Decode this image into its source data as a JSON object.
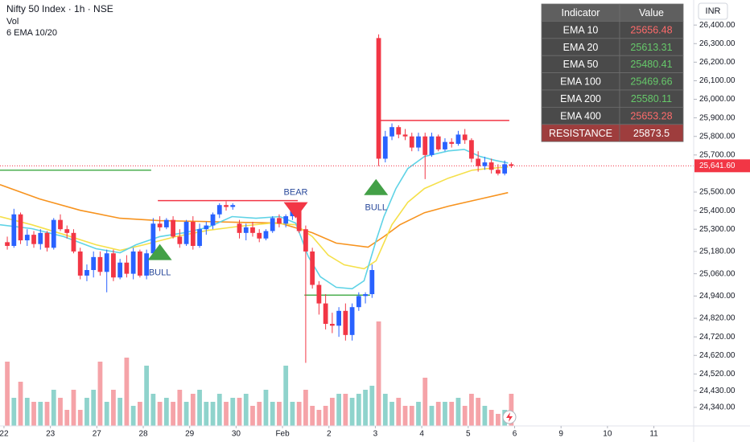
{
  "chart_data": {
    "type": "candlestick",
    "title": "Nifty 50 Index · 1h · NSE",
    "legend_items": [
      "Vol",
      "6 EMA 10/20"
    ],
    "currency": "INR",
    "xlim": [
      -0.6,
      104
    ],
    "xticks": [
      {
        "value": 0,
        "label": "22"
      },
      {
        "value": 7,
        "label": "23"
      },
      {
        "value": 14,
        "label": "27"
      },
      {
        "value": 21,
        "label": "28"
      },
      {
        "value": 28,
        "label": "29"
      },
      {
        "value": 35,
        "label": "30"
      },
      {
        "value": 42,
        "label": "Feb"
      },
      {
        "value": 49,
        "label": "2"
      },
      {
        "value": 56,
        "label": "3"
      },
      {
        "value": 63,
        "label": "4"
      },
      {
        "value": 70,
        "label": "5"
      },
      {
        "value": 77,
        "label": "6"
      },
      {
        "value": 84,
        "label": "9"
      },
      {
        "value": 91,
        "label": "10"
      },
      {
        "value": 98,
        "label": "11"
      }
    ],
    "ylim": [
      24240,
      26535
    ],
    "yticks": [
      {
        "value": 26400,
        "label": "26,400.00"
      },
      {
        "value": 26300,
        "label": "26,300.00"
      },
      {
        "value": 26200,
        "label": "26,200.00"
      },
      {
        "value": 26100,
        "label": "26,100.00"
      },
      {
        "value": 26000,
        "label": "26,000.00"
      },
      {
        "value": 25900,
        "label": "25,900.00"
      },
      {
        "value": 25800,
        "label": "25,800.00"
      },
      {
        "value": 25700,
        "label": "25,700.00"
      },
      {
        "value": 25500,
        "label": "25,500.00"
      },
      {
        "value": 25400,
        "label": "25,400.00"
      },
      {
        "value": 25300,
        "label": "25,300.00"
      },
      {
        "value": 25180,
        "label": "25,180.00"
      },
      {
        "value": 25060,
        "label": "25,060.00"
      },
      {
        "value": 24940,
        "label": "24,940.00"
      },
      {
        "value": 24820,
        "label": "24,820.00"
      },
      {
        "value": 24720,
        "label": "24,720.00"
      },
      {
        "value": 24620,
        "label": "24,620.00"
      },
      {
        "value": 24520,
        "label": "24,520.00"
      },
      {
        "value": 24430,
        "label": "24,430.00"
      },
      {
        "value": 24340,
        "label": "24,340.00"
      }
    ],
    "last_price": {
      "value": 25641.6,
      "label": "25,641.60"
    },
    "up_color": "#2962ff",
    "down_color": "#f23645",
    "volume_up_color": "#8fd3cc",
    "volume_down_color": "#f5a3a8",
    "volume_ylim": [
      0,
      160
    ],
    "open": [
      25230,
      25210,
      25380,
      25240,
      25270,
      25220,
      25280,
      25200,
      25350,
      25300,
      25280,
      25180,
      25050,
      25080,
      25150,
      25070,
      25170,
      25040,
      25120,
      25060,
      25180,
      25050,
      25170,
      25330,
      25310,
      25350,
      25260,
      25220,
      25340,
      25210,
      25300,
      25320,
      25380,
      25430,
      25420,
      25330,
      25280,
      25310,
      25280,
      25250,
      25290,
      25360,
      25330,
      25370,
      25420,
      25300,
      25180,
      25000,
      24900,
      24790,
      24780,
      24860,
      24730,
      24880,
      24940,
      24950,
      26330,
      25680,
      25800,
      25850,
      25810,
      25800,
      25740,
      25800,
      25700,
      25800,
      25730,
      25770,
      25760,
      25810,
      25780,
      25680,
      25640,
      25660,
      25620,
      25600,
      25650
    ],
    "high": [
      25260,
      25410,
      25390,
      25300,
      25290,
      25300,
      25290,
      25360,
      25380,
      25320,
      25300,
      25200,
      25110,
      25180,
      25180,
      25190,
      25190,
      25140,
      25160,
      25200,
      25190,
      25190,
      25360,
      25370,
      25360,
      25370,
      25300,
      25350,
      25370,
      25330,
      25340,
      25390,
      25440,
      25450,
      25440,
      25350,
      25330,
      25340,
      25300,
      25300,
      25370,
      25380,
      25380,
      25440,
      25425,
      25320,
      25200,
      25020,
      24950,
      24850,
      24880,
      24900,
      24900,
      24960,
      24960,
      25110,
      26350,
      25830,
      25870,
      25860,
      25840,
      25820,
      25820,
      25820,
      25820,
      25810,
      25790,
      25790,
      25830,
      25840,
      25790,
      25720,
      25690,
      25680,
      25650,
      25670,
      25660
    ],
    "low": [
      25190,
      25200,
      25220,
      25210,
      25200,
      25190,
      25180,
      25190,
      25290,
      25250,
      25170,
      25030,
      25020,
      25040,
      25050,
      24960,
      25020,
      25030,
      25040,
      25030,
      25040,
      25030,
      25150,
      25290,
      25300,
      25250,
      25200,
      25210,
      25190,
      25200,
      25270,
      25300,
      25360,
      25400,
      25405,
      25250,
      25240,
      25260,
      25230,
      25240,
      25280,
      25310,
      25310,
      25350,
      25280,
      24580,
      24980,
      24840,
      24760,
      24740,
      24720,
      24700,
      24700,
      24860,
      24900,
      24930,
      25640,
      25660,
      25780,
      25790,
      25780,
      25720,
      25720,
      25570,
      25690,
      25720,
      25720,
      25740,
      25750,
      25760,
      25660,
      25610,
      25620,
      25600,
      25590,
      25590,
      25630
    ],
    "close": [
      25210,
      25380,
      25240,
      25270,
      25220,
      25280,
      25200,
      25350,
      25300,
      25280,
      25180,
      25050,
      25080,
      25150,
      25070,
      25170,
      25040,
      25120,
      25060,
      25180,
      25050,
      25170,
      25330,
      25310,
      25350,
      25260,
      25220,
      25340,
      25210,
      25300,
      25320,
      25380,
      25430,
      25420,
      25430,
      25280,
      25310,
      25280,
      25250,
      25290,
      25360,
      25330,
      25370,
      25420,
      25290,
      25180,
      25000,
      24900,
      24790,
      24780,
      24860,
      24730,
      24880,
      24940,
      24950,
      25080,
      25680,
      25800,
      25850,
      25810,
      25800,
      25740,
      25800,
      25700,
      25800,
      25730,
      25770,
      25760,
      25810,
      25780,
      25680,
      25640,
      25660,
      25620,
      25600,
      25650,
      25641.6
    ],
    "volume": [
      80,
      35,
      55,
      35,
      30,
      30,
      30,
      45,
      35,
      20,
      45,
      20,
      35,
      45,
      80,
      30,
      45,
      35,
      85,
      25,
      30,
      75,
      40,
      30,
      35,
      30,
      45,
      30,
      40,
      45,
      30,
      30,
      40,
      30,
      35,
      35,
      40,
      25,
      30,
      45,
      30,
      30,
      75,
      30,
      30,
      45,
      25,
      20,
      25,
      35,
      40,
      40,
      35,
      40,
      45,
      50,
      130,
      40,
      30,
      35,
      25,
      25,
      30,
      60,
      25,
      30,
      30,
      30,
      35,
      25,
      40,
      35,
      25,
      20,
      15,
      20,
      40
    ],
    "lines": [
      {
        "color": "#f7931e",
        "x": [
          -0.6,
          5.4,
          11.5,
          17.5,
          23.5,
          29.6,
          35.6,
          41.6,
          46.5,
          50.1,
          54.9,
          57.3,
          59.7,
          63.4,
          67,
          71.8,
          76
        ],
        "values": [
          25540,
          25463,
          25402,
          25359,
          25346,
          25342,
          25337,
          25333,
          25281,
          25225,
          25203,
          25260,
          25324,
          25389,
          25424,
          25463,
          25497
        ]
      },
      {
        "color": "#f5e04a",
        "x": [
          -0.6,
          4.2,
          9,
          13.9,
          17.5,
          21.1,
          25.9,
          30.8,
          35.6,
          40.4,
          44,
          46.5,
          48.9,
          51.3,
          54.3,
          56.1,
          58.5,
          60.9,
          63.4,
          67,
          70.6,
          73,
          76
        ],
        "values": [
          25368,
          25324,
          25272,
          25216,
          25186,
          25216,
          25260,
          25294,
          25316,
          25333,
          25324,
          25260,
          25160,
          25108,
          25087,
          25130,
          25324,
          25445,
          25519,
          25575,
          25618,
          25627,
          25635
        ]
      },
      {
        "color": "#5fd3e6",
        "x": [
          -0.6,
          4.2,
          9,
          13.9,
          17.5,
          19.9,
          23.5,
          27.2,
          30.8,
          34.4,
          38,
          41.6,
          44,
          45.9,
          47.7,
          50.1,
          52.5,
          54.3,
          56.1,
          57.3,
          59.1,
          60.9,
          63.4,
          67,
          69.4,
          71.8,
          74.2,
          76
        ],
        "values": [
          25324,
          25303,
          25260,
          25195,
          25173,
          25216,
          25260,
          25281,
          25311,
          25368,
          25359,
          25368,
          25333,
          25152,
          25044,
          24987,
          24979,
          25022,
          25238,
          25368,
          25519,
          25627,
          25692,
          25722,
          25730,
          25692,
          25670,
          25657
        ]
      }
    ],
    "levels": [
      {
        "value": 25618,
        "x": [
          -0.6,
          22.2
        ],
        "color": "#4caf50"
      },
      {
        "value": 25454,
        "x": [
          23.2,
          44.3
        ],
        "color": "#f23645"
      },
      {
        "value": 25886,
        "x": [
          56.4,
          76.2
        ],
        "color": "#f23645"
      },
      {
        "value": 24945,
        "x": [
          45.3,
          55.2
        ],
        "color": "#4caf50"
      }
    ],
    "signals": [
      {
        "label": "BULL",
        "x": 23.5,
        "value": 25177,
        "direction": "up",
        "color": "#43a047"
      },
      {
        "label": "BEAR",
        "x": 44,
        "value": 25402,
        "direction": "down",
        "color": "#f23645"
      },
      {
        "label": "BULL",
        "x": 56.1,
        "value": 25527,
        "direction": "up",
        "color": "#43a047"
      }
    ]
  },
  "table": {
    "header": [
      "Indicator",
      "Value"
    ],
    "rows": [
      {
        "cells": [
          "EMA 10",
          25656.48
        ],
        "color": "#ff6b6b"
      },
      {
        "cells": [
          "EMA 20",
          25613.31
        ],
        "color": "#66c96a"
      },
      {
        "cells": [
          "EMA 50",
          25480.41
        ],
        "color": "#66c96a"
      },
      {
        "cells": [
          "EMA 100",
          25469.66
        ],
        "color": "#66c96a"
      },
      {
        "cells": [
          "EMA 200",
          25580.11
        ],
        "color": "#66c96a"
      },
      {
        "cells": [
          "EMA 400",
          25653.28
        ],
        "color": "#ff6b6b"
      },
      {
        "cells": [
          "RESISTANCE",
          25873.5
        ],
        "color": "#ffffff",
        "background": "#9e3d3d"
      }
    ]
  }
}
